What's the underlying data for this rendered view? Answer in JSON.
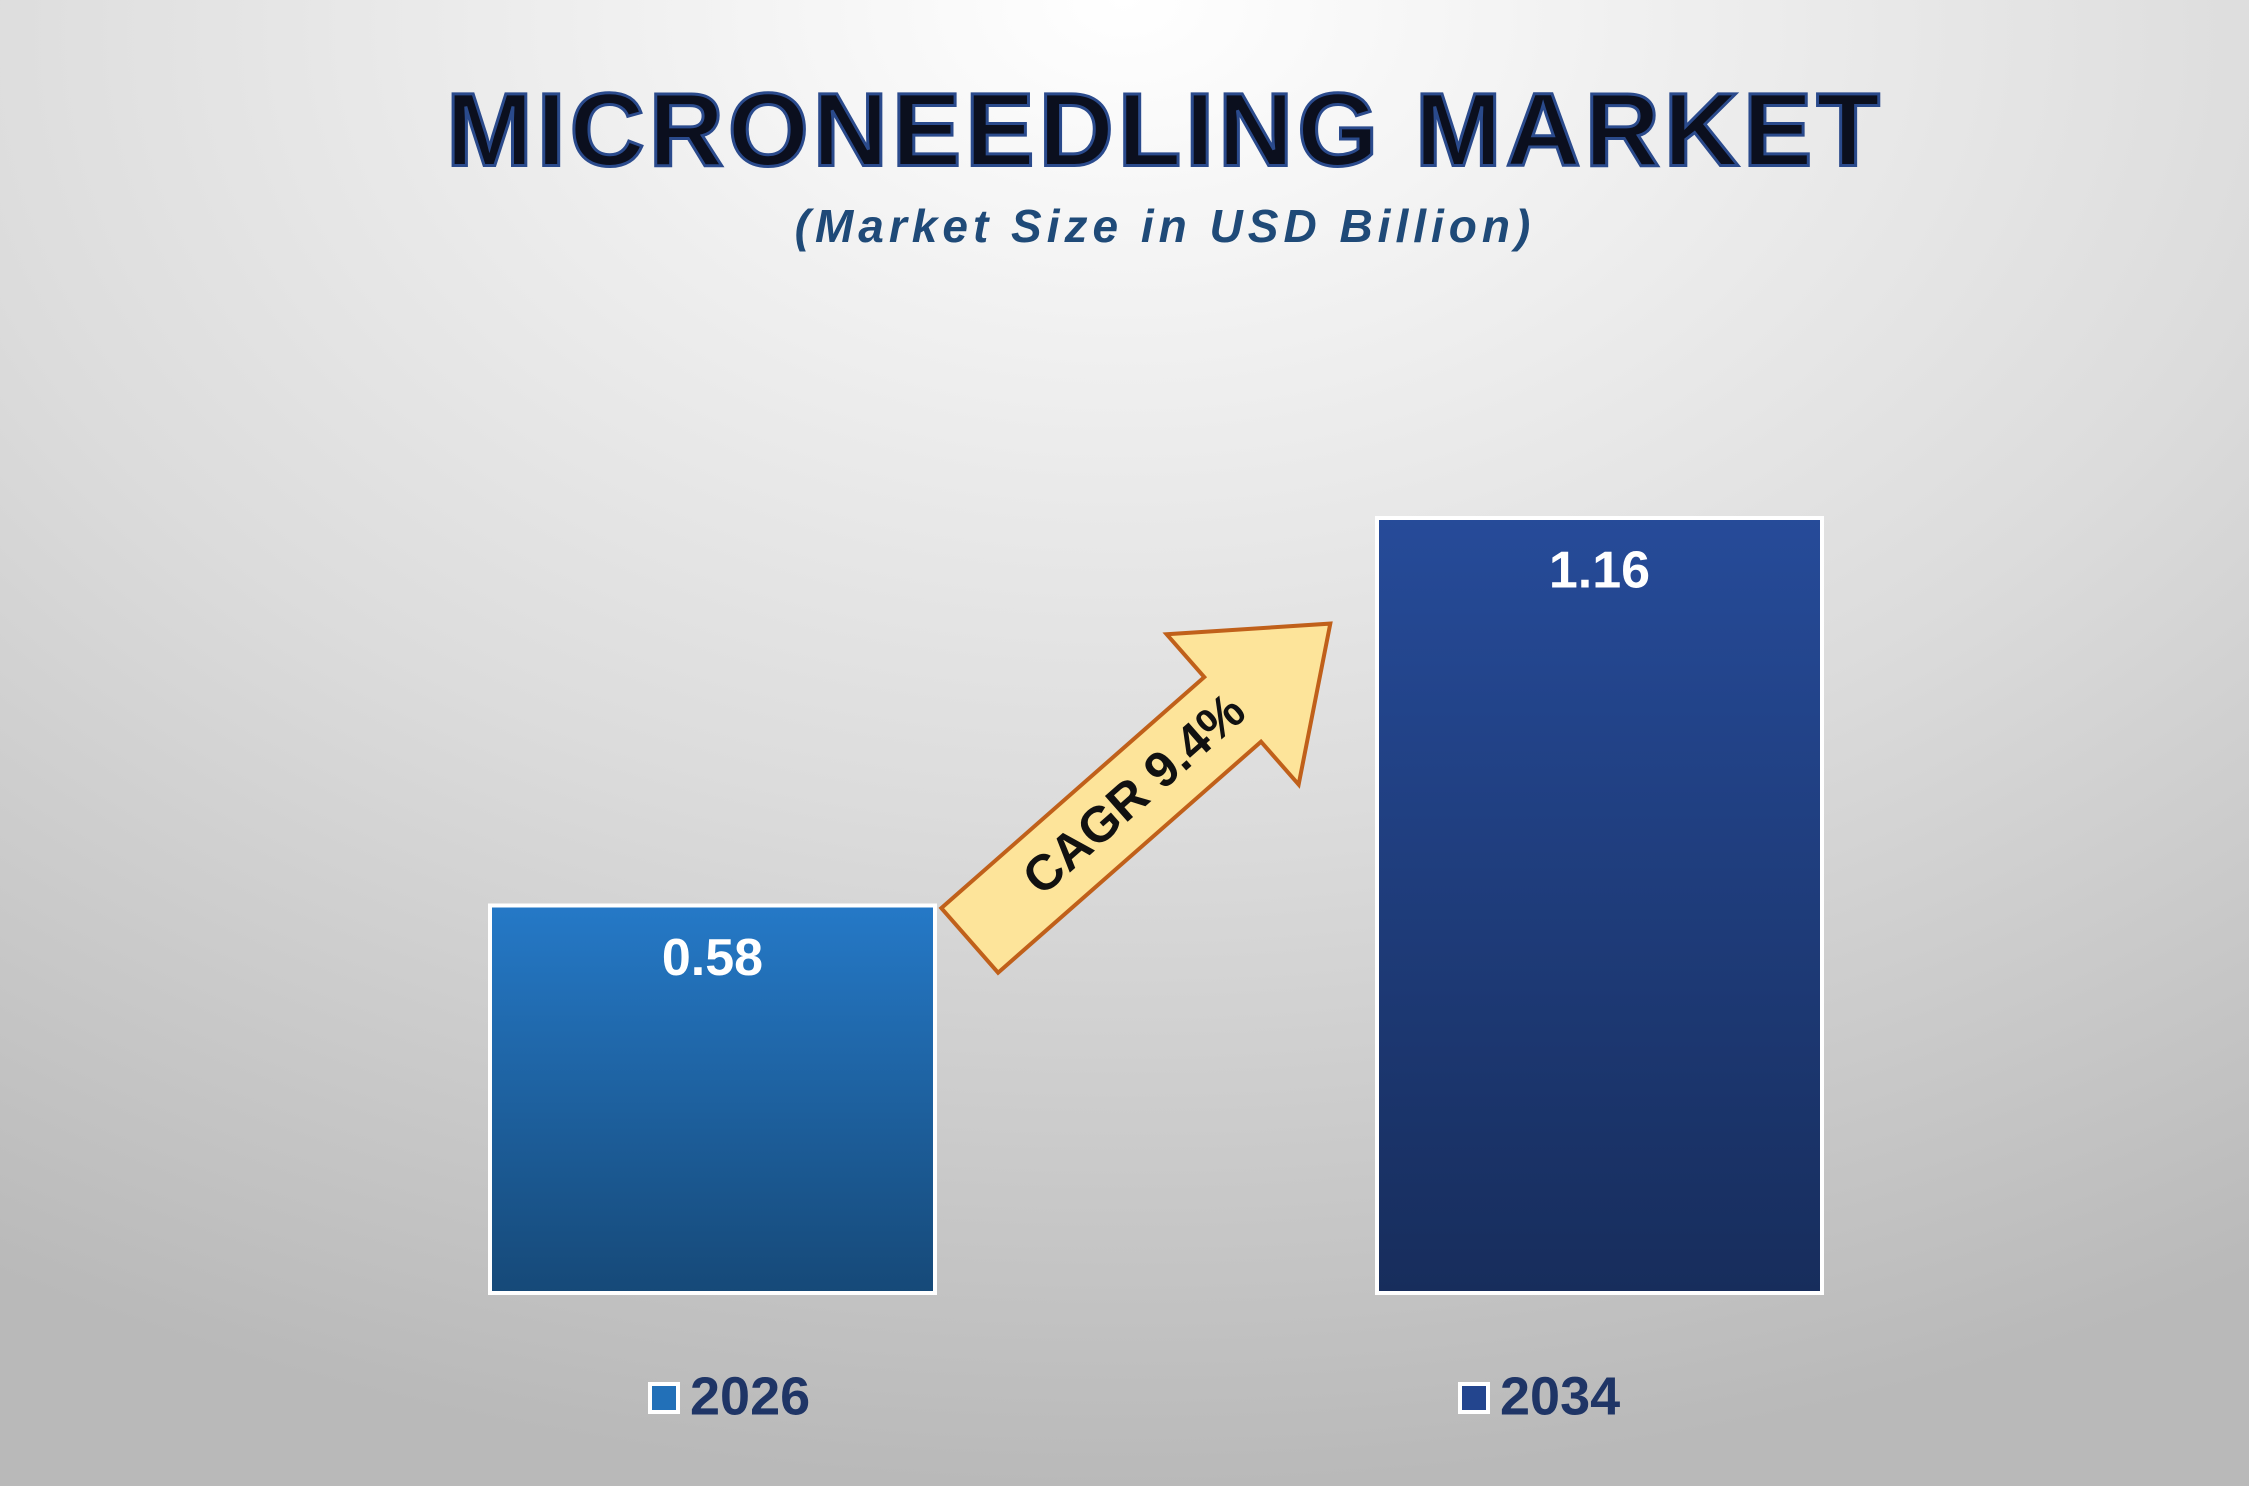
{
  "chart_data": {
    "type": "bar",
    "title": "MICRONEEDLING MARKET",
    "subtitle": "(Market Size in USD Billion)",
    "categories": [
      "2026",
      "2034"
    ],
    "values": [
      0.58,
      1.16
    ],
    "colors": [
      "#2270b8",
      "#23458e"
    ],
    "annotation": "CAGR 9.4%"
  }
}
